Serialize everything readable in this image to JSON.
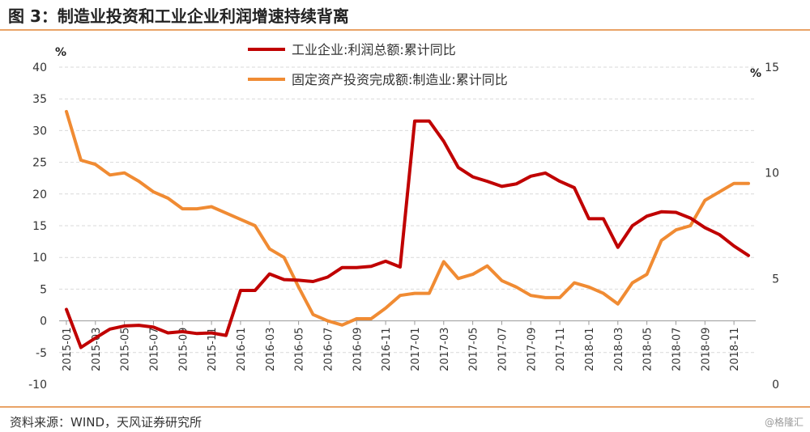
{
  "header": {
    "title": "图 3：制造业投资和工业企业利润增速持续背离"
  },
  "footer": {
    "source": "资料来源：WIND，天风证券研究所",
    "watermark": "@格隆汇"
  },
  "chart_data": {
    "type": "line",
    "left_unit": "%",
    "right_unit": "%",
    "ylim_left": [
      -10,
      40
    ],
    "yticks_left": [
      "40",
      "35",
      "30",
      "25",
      "20",
      "15",
      "10",
      "5",
      "0",
      "-5",
      "-10"
    ],
    "ylim_right": [
      0,
      15
    ],
    "yticks_right": [
      "15",
      "10",
      "5",
      "0"
    ],
    "x_tick_labels": [
      "2015-01",
      "2015-03",
      "2015-05",
      "2015-07",
      "2015-09",
      "2015-11",
      "2016-01",
      "2016-03",
      "2016-05",
      "2016-07",
      "2016-09",
      "2016-11",
      "2017-01",
      "2017-03",
      "2017-05",
      "2017-07",
      "2017-09",
      "2017-11",
      "2018-01",
      "2018-03",
      "2018-05",
      "2018-07",
      "2018-09",
      "2018-11"
    ],
    "series": [
      {
        "name": "工业企业:利润总额:累计同比",
        "axis": "left",
        "color": "#c00000",
        "x": [
          "2015-01",
          "2015-02",
          "2015-03",
          "2015-04",
          "2015-05",
          "2015-06",
          "2015-07",
          "2015-08",
          "2015-09",
          "2015-10",
          "2015-11",
          "2015-12",
          "2016-01",
          "2016-02",
          "2016-03",
          "2016-04",
          "2016-05",
          "2016-06",
          "2016-07",
          "2016-08",
          "2016-09",
          "2016-10",
          "2016-11",
          "2016-12",
          "2017-01",
          "2017-02",
          "2017-03",
          "2017-04",
          "2017-05",
          "2017-06",
          "2017-07",
          "2017-08",
          "2017-09",
          "2017-10",
          "2017-11",
          "2017-12",
          "2018-01",
          "2018-02",
          "2018-03",
          "2018-04",
          "2018-05",
          "2018-06",
          "2018-07",
          "2018-08",
          "2018-09",
          "2018-10",
          "2018-11",
          "2018-12"
        ],
        "values": [
          1.8,
          -4.2,
          -2.7,
          -1.3,
          -0.8,
          -0.7,
          -1.0,
          -1.9,
          -1.7,
          -2.0,
          -1.9,
          -2.3,
          4.8,
          4.8,
          7.4,
          6.5,
          6.4,
          6.2,
          6.9,
          8.4,
          8.4,
          8.6,
          9.4,
          8.5,
          31.5,
          31.5,
          28.3,
          24.2,
          22.7,
          22.0,
          21.2,
          21.6,
          22.8,
          23.3,
          22.0,
          21.0,
          16.1,
          16.1,
          11.6,
          15.0,
          16.5,
          17.2,
          17.1,
          16.2,
          14.7,
          13.6,
          11.8,
          10.3
        ]
      },
      {
        "name": "固定资产投资完成额:制造业:累计同比",
        "axis": "right",
        "color": "#f08b33",
        "x": [
          "2015-01",
          "2015-02",
          "2015-03",
          "2015-04",
          "2015-05",
          "2015-06",
          "2015-07",
          "2015-08",
          "2015-09",
          "2015-10",
          "2015-11",
          "2015-12",
          "2016-01",
          "2016-02",
          "2016-03",
          "2016-04",
          "2016-05",
          "2016-06",
          "2016-07",
          "2016-08",
          "2016-09",
          "2016-10",
          "2016-11",
          "2016-12",
          "2017-01",
          "2017-02",
          "2017-03",
          "2017-04",
          "2017-05",
          "2017-06",
          "2017-07",
          "2017-08",
          "2017-09",
          "2017-10",
          "2017-11",
          "2017-12",
          "2018-01",
          "2018-02",
          "2018-03",
          "2018-04",
          "2018-05",
          "2018-06",
          "2018-07",
          "2018-08",
          "2018-09",
          "2018-10",
          "2018-11",
          "2018-12"
        ],
        "values": [
          12.9,
          10.6,
          10.4,
          9.9,
          10.0,
          9.6,
          9.1,
          8.8,
          8.3,
          8.3,
          8.4,
          8.1,
          7.8,
          7.5,
          6.4,
          6.0,
          4.6,
          3.3,
          3.0,
          2.8,
          3.1,
          3.1,
          3.6,
          4.2,
          4.3,
          4.3,
          5.8,
          5.0,
          5.2,
          5.6,
          4.9,
          4.6,
          4.2,
          4.1,
          4.1,
          4.8,
          4.6,
          4.3,
          3.8,
          4.8,
          5.2,
          6.8,
          7.3,
          7.5,
          8.7,
          9.1,
          9.5,
          9.5
        ]
      }
    ]
  }
}
